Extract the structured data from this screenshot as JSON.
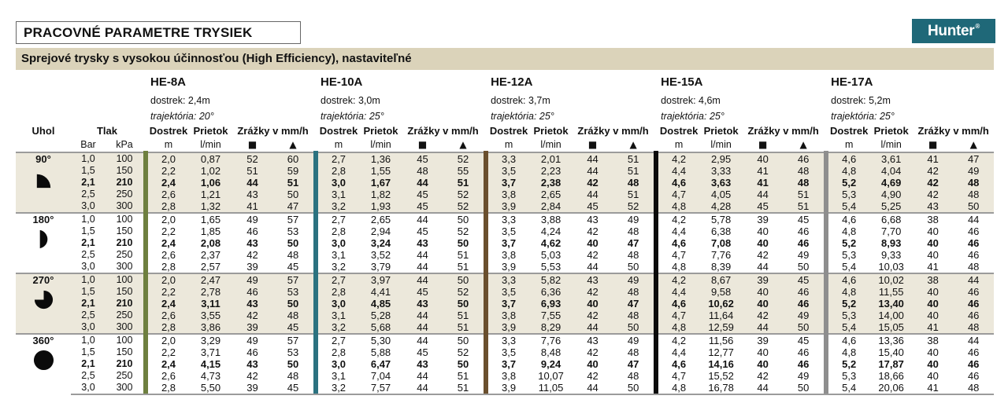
{
  "page": {
    "title": "PRACOVNÉ PARAMETRE TRYSIEK",
    "subtitle": "Sprejové trysky s vysokou účinnosťou (High Efficiency), nastaviteľné",
    "brand": {
      "name": "Hunter",
      "reg": "®"
    }
  },
  "colors": {
    "brand_bg": "#1F6878",
    "subtitle_bg": "#DBD3BA",
    "group_band_bg": "#ECE8DB",
    "rule": "#9B9B9B"
  },
  "table": {
    "headers": {
      "angle": "Uhol",
      "pressure": "Tlak",
      "pressure_units": [
        "Bar",
        "kPa"
      ],
      "dostrek": "Dostrek",
      "dostrek_unit": "m",
      "prietok": "Prietok",
      "prietok_unit": "l/min",
      "zrazky": "Zrážky v mm/h",
      "square": "■",
      "triangle": "▲"
    },
    "nozzles": [
      {
        "name": "HE-8A",
        "range_label": "dostrek: 2,4m",
        "trajectory_label": "trajektória: 20°",
        "bar_color": "#6E7F3F"
      },
      {
        "name": "HE-10A",
        "range_label": "dostrek: 3,0m",
        "trajectory_label": "trajektória: 25°",
        "bar_color": "#2B7280"
      },
      {
        "name": "HE-12A",
        "range_label": "dostrek: 3,7m",
        "trajectory_label": "trajektória: 25°",
        "bar_color": "#6A4F2D"
      },
      {
        "name": "HE-15A",
        "range_label": "dostrek: 4,6m",
        "trajectory_label": "trajektória: 25°",
        "bar_color": "#0B0B0B"
      },
      {
        "name": "HE-17A",
        "range_label": "dostrek: 5,2m",
        "trajectory_label": "trajektória: 25°",
        "bar_color": "#8E8E8E"
      }
    ],
    "groups": [
      {
        "angle": "90°",
        "icon": "quarter-circle",
        "banded": true,
        "rows": [
          {
            "pressure": [
              "1,0",
              "100"
            ],
            "bold": false,
            "values": [
              [
                "2,0",
                "0,87",
                "52",
                "60"
              ],
              [
                "2,7",
                "1,36",
                "45",
                "52"
              ],
              [
                "3,3",
                "2,01",
                "44",
                "51"
              ],
              [
                "4,2",
                "2,95",
                "40",
                "46"
              ],
              [
                "4,6",
                "3,61",
                "41",
                "47"
              ]
            ]
          },
          {
            "pressure": [
              "1,5",
              "150"
            ],
            "bold": false,
            "values": [
              [
                "2,2",
                "1,02",
                "51",
                "59"
              ],
              [
                "2,8",
                "1,55",
                "48",
                "55"
              ],
              [
                "3,5",
                "2,23",
                "44",
                "51"
              ],
              [
                "4,4",
                "3,33",
                "41",
                "48"
              ],
              [
                "4,8",
                "4,04",
                "42",
                "49"
              ]
            ]
          },
          {
            "pressure": [
              "2,1",
              "210"
            ],
            "bold": true,
            "values": [
              [
                "2,4",
                "1,06",
                "44",
                "51"
              ],
              [
                "3,0",
                "1,67",
                "44",
                "51"
              ],
              [
                "3,7",
                "2,38",
                "42",
                "48"
              ],
              [
                "4,6",
                "3,63",
                "41",
                "48"
              ],
              [
                "5,2",
                "4,69",
                "42",
                "48"
              ]
            ]
          },
          {
            "pressure": [
              "2,5",
              "250"
            ],
            "bold": false,
            "values": [
              [
                "2,6",
                "1,21",
                "43",
                "50"
              ],
              [
                "3,1",
                "1,82",
                "45",
                "52"
              ],
              [
                "3,8",
                "2,65",
                "44",
                "51"
              ],
              [
                "4,7",
                "4,05",
                "44",
                "51"
              ],
              [
                "5,3",
                "4,90",
                "42",
                "48"
              ]
            ]
          },
          {
            "pressure": [
              "3,0",
              "300"
            ],
            "bold": false,
            "values": [
              [
                "2,8",
                "1,32",
                "41",
                "47"
              ],
              [
                "3,2",
                "1,93",
                "45",
                "52"
              ],
              [
                "3,9",
                "2,84",
                "45",
                "52"
              ],
              [
                "4,8",
                "4,28",
                "45",
                "51"
              ],
              [
                "5,4",
                "5,25",
                "43",
                "50"
              ]
            ]
          }
        ]
      },
      {
        "angle": "180°",
        "icon": "half-circle",
        "banded": false,
        "rows": [
          {
            "pressure": [
              "1,0",
              "100"
            ],
            "bold": false,
            "values": [
              [
                "2,0",
                "1,65",
                "49",
                "57"
              ],
              [
                "2,7",
                "2,65",
                "44",
                "50"
              ],
              [
                "3,3",
                "3,88",
                "43",
                "49"
              ],
              [
                "4,2",
                "5,78",
                "39",
                "45"
              ],
              [
                "4,6",
                "6,68",
                "38",
                "44"
              ]
            ]
          },
          {
            "pressure": [
              "1,5",
              "150"
            ],
            "bold": false,
            "values": [
              [
                "2,2",
                "1,85",
                "46",
                "53"
              ],
              [
                "2,8",
                "2,94",
                "45",
                "52"
              ],
              [
                "3,5",
                "4,24",
                "42",
                "48"
              ],
              [
                "4,4",
                "6,38",
                "40",
                "46"
              ],
              [
                "4,8",
                "7,70",
                "40",
                "46"
              ]
            ]
          },
          {
            "pressure": [
              "2,1",
              "210"
            ],
            "bold": true,
            "values": [
              [
                "2,4",
                "2,08",
                "43",
                "50"
              ],
              [
                "3,0",
                "3,24",
                "43",
                "50"
              ],
              [
                "3,7",
                "4,62",
                "40",
                "47"
              ],
              [
                "4,6",
                "7,08",
                "40",
                "46"
              ],
              [
                "5,2",
                "8,93",
                "40",
                "46"
              ]
            ]
          },
          {
            "pressure": [
              "2,5",
              "250"
            ],
            "bold": false,
            "values": [
              [
                "2,6",
                "2,37",
                "42",
                "48"
              ],
              [
                "3,1",
                "3,52",
                "44",
                "51"
              ],
              [
                "3,8",
                "5,03",
                "42",
                "48"
              ],
              [
                "4,7",
                "7,76",
                "42",
                "49"
              ],
              [
                "5,3",
                "9,33",
                "40",
                "46"
              ]
            ]
          },
          {
            "pressure": [
              "3,0",
              "300"
            ],
            "bold": false,
            "values": [
              [
                "2,8",
                "2,57",
                "39",
                "45"
              ],
              [
                "3,2",
                "3,79",
                "44",
                "51"
              ],
              [
                "3,9",
                "5,53",
                "44",
                "50"
              ],
              [
                "4,8",
                "8,39",
                "44",
                "50"
              ],
              [
                "5,4",
                "10,03",
                "41",
                "48"
              ]
            ]
          }
        ]
      },
      {
        "angle": "270°",
        "icon": "three-quarter-circle",
        "banded": true,
        "rows": [
          {
            "pressure": [
              "1,0",
              "100"
            ],
            "bold": false,
            "values": [
              [
                "2,0",
                "2,47",
                "49",
                "57"
              ],
              [
                "2,7",
                "3,97",
                "44",
                "50"
              ],
              [
                "3,3",
                "5,82",
                "43",
                "49"
              ],
              [
                "4,2",
                "8,67",
                "39",
                "45"
              ],
              [
                "4,6",
                "10,02",
                "38",
                "44"
              ]
            ]
          },
          {
            "pressure": [
              "1,5",
              "150"
            ],
            "bold": false,
            "values": [
              [
                "2,2",
                "2,78",
                "46",
                "53"
              ],
              [
                "2,8",
                "4,41",
                "45",
                "52"
              ],
              [
                "3,5",
                "6,36",
                "42",
                "48"
              ],
              [
                "4,4",
                "9,58",
                "40",
                "46"
              ],
              [
                "4,8",
                "11,55",
                "40",
                "46"
              ]
            ]
          },
          {
            "pressure": [
              "2,1",
              "210"
            ],
            "bold": true,
            "values": [
              [
                "2,4",
                "3,11",
                "43",
                "50"
              ],
              [
                "3,0",
                "4,85",
                "43",
                "50"
              ],
              [
                "3,7",
                "6,93",
                "40",
                "47"
              ],
              [
                "4,6",
                "10,62",
                "40",
                "46"
              ],
              [
                "5,2",
                "13,40",
                "40",
                "46"
              ]
            ]
          },
          {
            "pressure": [
              "2,5",
              "250"
            ],
            "bold": false,
            "values": [
              [
                "2,6",
                "3,55",
                "42",
                "48"
              ],
              [
                "3,1",
                "5,28",
                "44",
                "51"
              ],
              [
                "3,8",
                "7,55",
                "42",
                "48"
              ],
              [
                "4,7",
                "11,64",
                "42",
                "49"
              ],
              [
                "5,3",
                "14,00",
                "40",
                "46"
              ]
            ]
          },
          {
            "pressure": [
              "3,0",
              "300"
            ],
            "bold": false,
            "values": [
              [
                "2,8",
                "3,86",
                "39",
                "45"
              ],
              [
                "3,2",
                "5,68",
                "44",
                "51"
              ],
              [
                "3,9",
                "8,29",
                "44",
                "50"
              ],
              [
                "4,8",
                "12,59",
                "44",
                "50"
              ],
              [
                "5,4",
                "15,05",
                "41",
                "48"
              ]
            ]
          }
        ]
      },
      {
        "angle": "360°",
        "icon": "full-circle",
        "banded": false,
        "rows": [
          {
            "pressure": [
              "1,0",
              "100"
            ],
            "bold": false,
            "values": [
              [
                "2,0",
                "3,29",
                "49",
                "57"
              ],
              [
                "2,7",
                "5,30",
                "44",
                "50"
              ],
              [
                "3,3",
                "7,76",
                "43",
                "49"
              ],
              [
                "4,2",
                "11,56",
                "39",
                "45"
              ],
              [
                "4,6",
                "13,36",
                "38",
                "44"
              ]
            ]
          },
          {
            "pressure": [
              "1,5",
              "150"
            ],
            "bold": false,
            "values": [
              [
                "2,2",
                "3,71",
                "46",
                "53"
              ],
              [
                "2,8",
                "5,88",
                "45",
                "52"
              ],
              [
                "3,5",
                "8,48",
                "42",
                "48"
              ],
              [
                "4,4",
                "12,77",
                "40",
                "46"
              ],
              [
                "4,8",
                "15,40",
                "40",
                "46"
              ]
            ]
          },
          {
            "pressure": [
              "2,1",
              "210"
            ],
            "bold": true,
            "values": [
              [
                "2,4",
                "4,15",
                "43",
                "50"
              ],
              [
                "3,0",
                "6,47",
                "43",
                "50"
              ],
              [
                "3,7",
                "9,24",
                "40",
                "47"
              ],
              [
                "4,6",
                "14,16",
                "40",
                "46"
              ],
              [
                "5,2",
                "17,87",
                "40",
                "46"
              ]
            ]
          },
          {
            "pressure": [
              "2,5",
              "250"
            ],
            "bold": false,
            "values": [
              [
                "2,6",
                "4,73",
                "42",
                "48"
              ],
              [
                "3,1",
                "7,04",
                "44",
                "51"
              ],
              [
                "3,8",
                "10,07",
                "42",
                "48"
              ],
              [
                "4,7",
                "15,52",
                "42",
                "49"
              ],
              [
                "5,3",
                "18,66",
                "40",
                "46"
              ]
            ]
          },
          {
            "pressure": [
              "3,0",
              "300"
            ],
            "bold": false,
            "values": [
              [
                "2,8",
                "5,50",
                "39",
                "45"
              ],
              [
                "3,2",
                "7,57",
                "44",
                "51"
              ],
              [
                "3,9",
                "11,05",
                "44",
                "50"
              ],
              [
                "4,8",
                "16,78",
                "44",
                "50"
              ],
              [
                "5,4",
                "20,06",
                "41",
                "48"
              ]
            ]
          }
        ]
      }
    ]
  }
}
